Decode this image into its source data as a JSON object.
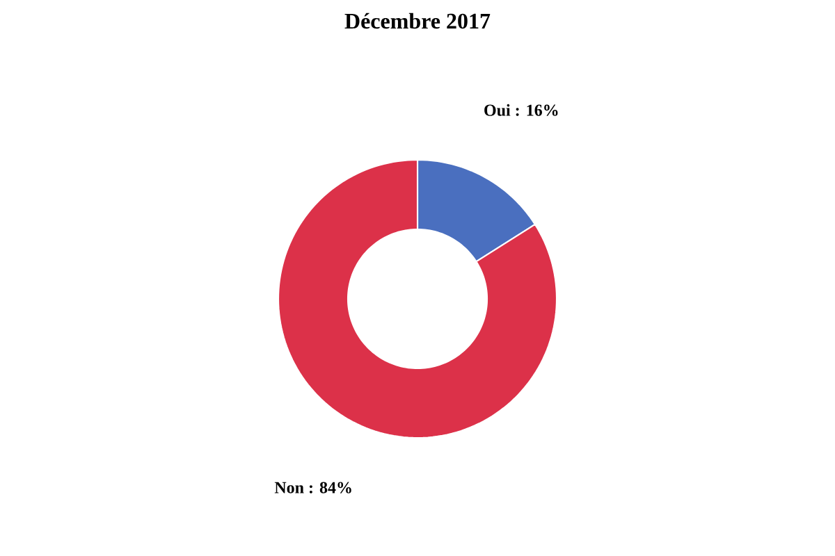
{
  "chart_data": {
    "type": "donut",
    "title": "Décembre 2017",
    "categories": [
      null,
      null
    ],
    "values": [
      16,
      84
    ],
    "colors": [
      "#4a6fbf",
      "#dc3149"
    ],
    "value_labels": [
      "Oui : 16%",
      "Non : 84%"
    ]
  }
}
